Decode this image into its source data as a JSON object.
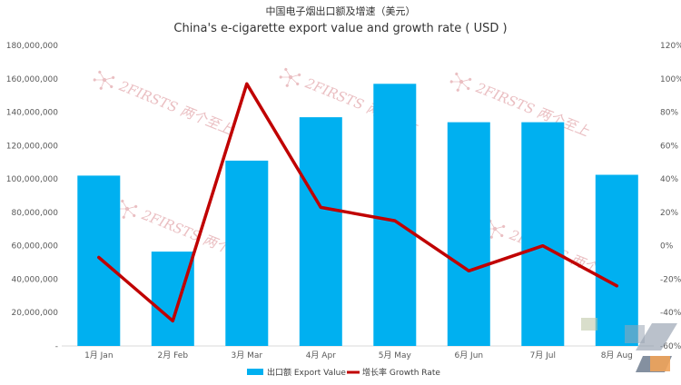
{
  "chart_data": {
    "type": "bar",
    "title": "中国电子烟出口额及增速（美元）",
    "subtitle": "China's e-cigarette export value and growth rate ( USD )",
    "categories": [
      "1月 Jan",
      "2月 Feb",
      "3月 Mar",
      "4月 Apr",
      "5月 May",
      "6月 Jun",
      "7月 Jul",
      "8月 Aug"
    ],
    "series": [
      {
        "name": "出口额 Export Value",
        "type": "bar",
        "axis": "left",
        "color": "#00b0f0",
        "values": [
          102000000,
          56500000,
          111000000,
          137000000,
          157000000,
          134000000,
          134000000,
          102500000
        ]
      },
      {
        "name": "增长率 Growth Rate",
        "type": "line",
        "axis": "right",
        "color": "#c00000",
        "unit": "%",
        "values": [
          -7,
          -45,
          97,
          23,
          15,
          -15,
          0,
          -24
        ]
      }
    ],
    "y_left": {
      "min": 0,
      "max": 180000000,
      "step": 20000000,
      "tick_labels": [
        "-",
        "20,000,000",
        "40,000,000",
        "60,000,000",
        "80,000,000",
        "100,000,000",
        "120,000,000",
        "140,000,000",
        "160,000,000",
        "180,000,000"
      ]
    },
    "y_right": {
      "min": -60,
      "max": 120,
      "step": 20,
      "tick_labels": [
        "-60%",
        "-40%",
        "-20%",
        "0%",
        "20%",
        "40%",
        "60%",
        "80%",
        "100%",
        "120%"
      ]
    },
    "grid": false,
    "legend_position": "bottom",
    "watermark": "2FIRSTS 两个至上"
  }
}
